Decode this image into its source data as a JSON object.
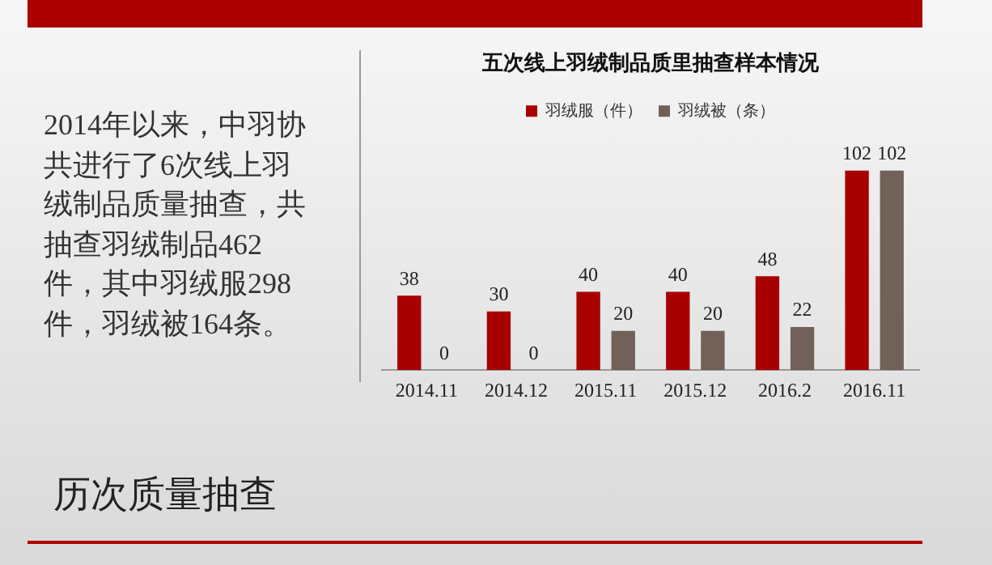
{
  "chart_data": {
    "type": "bar",
    "title": "五次线上羽绒制品质里抽查样本情况",
    "categories": [
      "2014.11",
      "2014.12",
      "2015.11",
      "2015.12",
      "2016.2",
      "2016.11"
    ],
    "series": [
      {
        "name": "羽绒服（件）",
        "color": "#a80000",
        "values": [
          38,
          30,
          40,
          40,
          48,
          102
        ]
      },
      {
        "name": "羽绒被（条）",
        "color": "#726158",
        "values": [
          0,
          0,
          20,
          20,
          22,
          102
        ]
      }
    ],
    "data_labels": true,
    "legend": "top",
    "grid": false,
    "tick_labels": "x",
    "annotations": [
      "2014年以来，中羽协共进行了6次线上羽绒制品质量抽查，共抽查羽绒制品462件，其中羽绒服298件，羽绒被164条。",
      "历次质量抽查"
    ]
  }
}
